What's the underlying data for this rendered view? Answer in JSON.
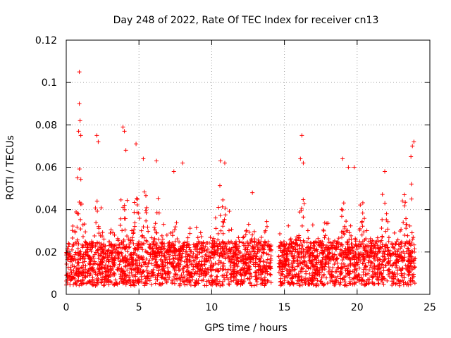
{
  "chart_data": {
    "type": "scatter",
    "title": "Day 248 of 2022, Rate Of TEC Index for receiver cn13",
    "xlabel": "GPS time / hours",
    "ylabel": "ROTI / TECUs",
    "xlim": [
      0,
      25
    ],
    "ylim": [
      0,
      0.12
    ],
    "grid": true,
    "marker": "+",
    "color": "#ff0000",
    "x_ticks": [
      {
        "value": 0,
        "label": "0"
      },
      {
        "value": 5,
        "label": "5"
      },
      {
        "value": 10,
        "label": "10"
      },
      {
        "value": 15,
        "label": "15"
      },
      {
        "value": 20,
        "label": "20"
      },
      {
        "value": 25,
        "label": "25"
      }
    ],
    "y_ticks": [
      {
        "value": 0,
        "label": "0"
      },
      {
        "value": 0.02,
        "label": "0.02"
      },
      {
        "value": 0.04,
        "label": "0.04"
      },
      {
        "value": 0.06,
        "label": "0.06"
      },
      {
        "value": 0.08,
        "label": "0.08"
      },
      {
        "value": 0.1,
        "label": "0.1"
      },
      {
        "value": 0.12,
        "label": "0.12"
      }
    ],
    "series": [
      {
        "name": "ROTI",
        "coverage": [
          [
            0.0,
            14.1
          ],
          [
            14.6,
            24.0
          ]
        ],
        "baseline_range": [
          0.004,
          0.025
        ],
        "notable_points": [
          {
            "x": 0.9,
            "y": 0.105
          },
          {
            "x": 0.9,
            "y": 0.09
          },
          {
            "x": 0.95,
            "y": 0.082
          },
          {
            "x": 0.85,
            "y": 0.077
          },
          {
            "x": 1.0,
            "y": 0.075
          },
          {
            "x": 2.1,
            "y": 0.075
          },
          {
            "x": 2.2,
            "y": 0.072
          },
          {
            "x": 3.9,
            "y": 0.079
          },
          {
            "x": 4.0,
            "y": 0.077
          },
          {
            "x": 4.1,
            "y": 0.068
          },
          {
            "x": 4.8,
            "y": 0.071
          },
          {
            "x": 5.3,
            "y": 0.064
          },
          {
            "x": 6.2,
            "y": 0.063
          },
          {
            "x": 7.4,
            "y": 0.058
          },
          {
            "x": 8.0,
            "y": 0.062
          },
          {
            "x": 10.6,
            "y": 0.063
          },
          {
            "x": 10.9,
            "y": 0.062
          },
          {
            "x": 12.8,
            "y": 0.048
          },
          {
            "x": 16.2,
            "y": 0.075
          },
          {
            "x": 16.1,
            "y": 0.064
          },
          {
            "x": 16.3,
            "y": 0.062
          },
          {
            "x": 19.0,
            "y": 0.064
          },
          {
            "x": 19.4,
            "y": 0.06
          },
          {
            "x": 19.8,
            "y": 0.06
          },
          {
            "x": 21.9,
            "y": 0.058
          },
          {
            "x": 23.9,
            "y": 0.072
          },
          {
            "x": 23.8,
            "y": 0.07
          },
          {
            "x": 23.7,
            "y": 0.065
          }
        ]
      }
    ]
  }
}
